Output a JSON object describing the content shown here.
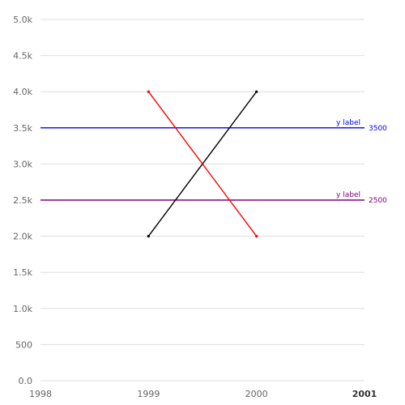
{
  "chart_data": {
    "type": "line",
    "title": "",
    "xlabel": "",
    "ylabel": "",
    "xlim": [
      1998,
      2001
    ],
    "ylim": [
      0,
      5000
    ],
    "grid": true,
    "x_ticks": [
      {
        "value": 1998,
        "label": "1998",
        "bold": false
      },
      {
        "value": 1999,
        "label": "1999",
        "bold": false
      },
      {
        "value": 2000,
        "label": "2000",
        "bold": false
      },
      {
        "value": 2001,
        "label": "2001",
        "bold": true
      }
    ],
    "y_ticks": [
      {
        "value": 0,
        "label": "0.0"
      },
      {
        "value": 500,
        "label": "500"
      },
      {
        "value": 1000,
        "label": "1.0k"
      },
      {
        "value": 1500,
        "label": "1.5k"
      },
      {
        "value": 2000,
        "label": "2.0k"
      },
      {
        "value": 2500,
        "label": "2.5k"
      },
      {
        "value": 3000,
        "label": "3.0k"
      },
      {
        "value": 3500,
        "label": "3.5k"
      },
      {
        "value": 4000,
        "label": "4.0k"
      },
      {
        "value": 4500,
        "label": "4.5k"
      },
      {
        "value": 5000,
        "label": "5.0k"
      }
    ],
    "series": [
      {
        "color": "#000000",
        "points": [
          {
            "x": 1999,
            "y": 2000
          },
          {
            "x": 2000,
            "y": 4000
          }
        ]
      },
      {
        "color": "#ff0000",
        "points": [
          {
            "x": 1999,
            "y": 4000
          },
          {
            "x": 2000,
            "y": 2000
          }
        ]
      }
    ],
    "reference_lines": [
      {
        "y": 3500,
        "label": "y label",
        "value_label": "3500",
        "color": "#0000ff"
      },
      {
        "y": 2500,
        "label": "y label",
        "value_label": "2500",
        "color": "#800080"
      }
    ]
  }
}
